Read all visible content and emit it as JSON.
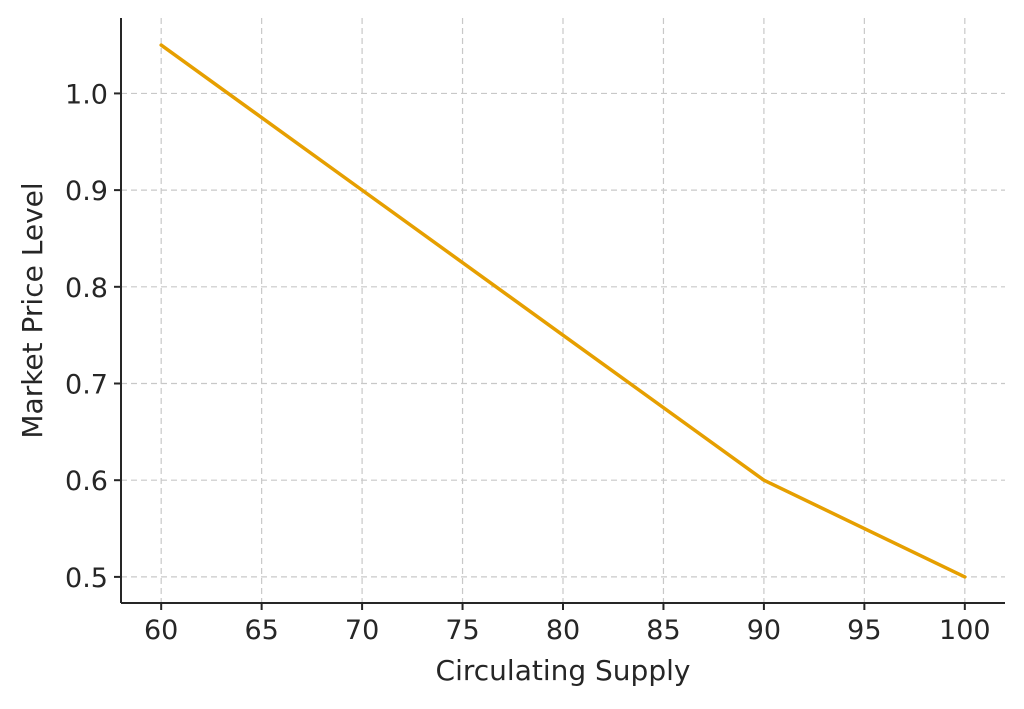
{
  "chart_data": {
    "type": "line",
    "title": "",
    "xlabel": "Circulating Supply",
    "ylabel": "Market Price Level",
    "xlim": [
      58,
      102
    ],
    "ylim": [
      0.473,
      1.078
    ],
    "x_ticks": [
      60,
      65,
      70,
      75,
      80,
      85,
      90,
      95,
      100
    ],
    "y_ticks": [
      0.5,
      0.6,
      0.7,
      0.8,
      0.9,
      1.0
    ],
    "x_tick_labels": [
      "60",
      "65",
      "70",
      "75",
      "80",
      "85",
      "90",
      "95",
      "100"
    ],
    "y_tick_labels": [
      "0.5",
      "0.6",
      "0.7",
      "0.8",
      "0.9",
      "1.0"
    ],
    "grid": true,
    "grid_style": "dashed",
    "series": [
      {
        "color": "#E69F00",
        "x": [
          60,
          70,
          80,
          90,
          100
        ],
        "y": [
          1.05,
          0.9,
          0.75,
          0.6,
          0.5
        ]
      }
    ]
  }
}
